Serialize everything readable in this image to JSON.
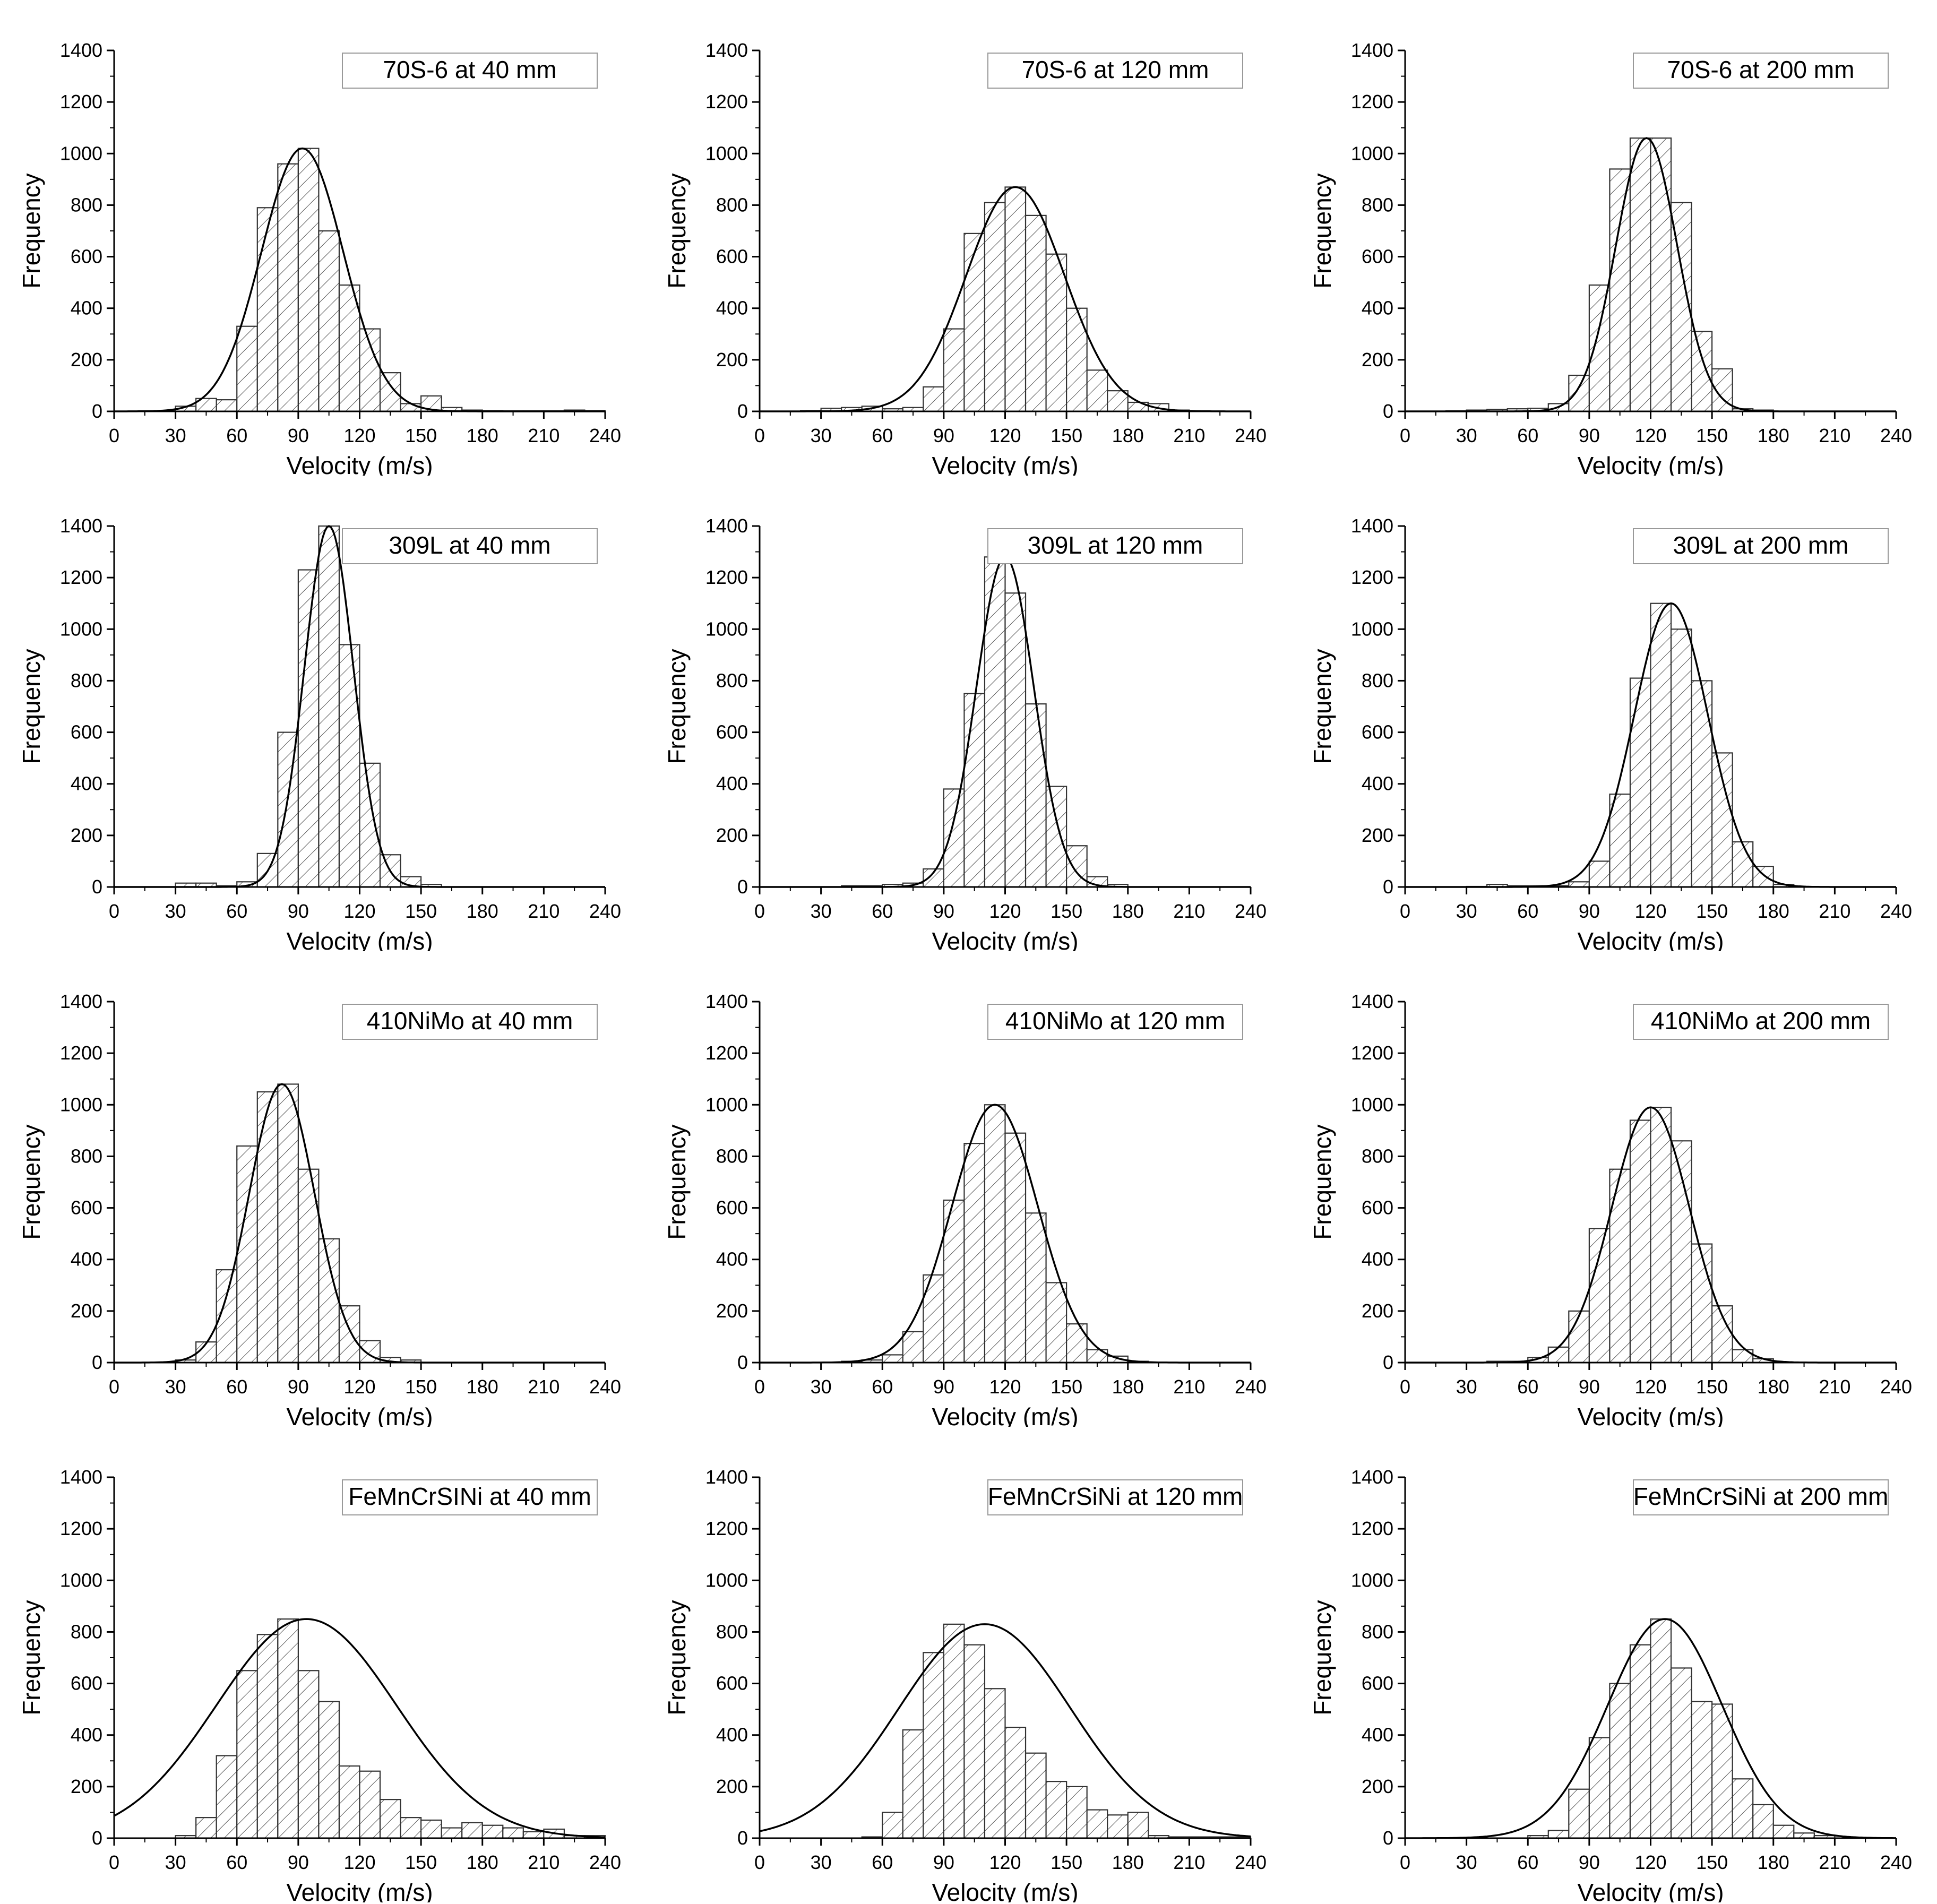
{
  "figure": {
    "axis_x_label": "Velocity (m/s)",
    "axis_y_label": "Frequency",
    "x_ticks": [
      "0",
      "30",
      "60",
      "90",
      "120",
      "150",
      "180",
      "210",
      "240"
    ],
    "y_ticks": [
      "0",
      "200",
      "400",
      "600",
      "800",
      "1000",
      "1200",
      "1400"
    ],
    "bar_fill_color": "#ffffff",
    "hatch_color": "#555555",
    "line_color": "#000000"
  },
  "chart_data": [
    {
      "type": "bar",
      "title": "70S-6 at 40 mm",
      "xlabel": "Velocity (m/s)",
      "ylabel": "Frequency",
      "xlim": [
        0,
        240
      ],
      "ylim": [
        0,
        1400
      ],
      "bin_width": 10,
      "bin_starts": [
        20,
        30,
        40,
        50,
        60,
        70,
        80,
        90,
        100,
        110,
        120,
        130,
        140,
        150,
        160,
        170,
        180,
        190,
        200,
        210,
        220,
        230
      ],
      "values": [
        3,
        20,
        50,
        45,
        330,
        790,
        960,
        1020,
        700,
        490,
        320,
        150,
        30,
        60,
        15,
        5,
        3,
        2,
        2,
        2,
        5,
        3
      ],
      "fit": {
        "mean": 92,
        "peak": 1020,
        "sd": 20
      }
    },
    {
      "type": "bar",
      "title": "70S-6 at 120 mm",
      "xlabel": "Velocity (m/s)",
      "ylabel": "Frequency",
      "xlim": [
        0,
        240
      ],
      "ylim": [
        0,
        1400
      ],
      "bin_width": 10,
      "bin_starts": [
        20,
        30,
        40,
        50,
        60,
        70,
        80,
        90,
        100,
        110,
        120,
        130,
        140,
        150,
        160,
        170,
        180,
        190,
        200
      ],
      "values": [
        3,
        12,
        15,
        20,
        10,
        15,
        95,
        320,
        690,
        810,
        870,
        760,
        610,
        400,
        160,
        80,
        35,
        30,
        5
      ],
      "fit": {
        "mean": 125,
        "peak": 870,
        "sd": 24
      }
    },
    {
      "type": "bar",
      "title": "70S-6 at 200 mm",
      "xlabel": "Velocity (m/s)",
      "ylabel": "Frequency",
      "xlim": [
        0,
        240
      ],
      "ylim": [
        0,
        1400
      ],
      "bin_width": 10,
      "bin_starts": [
        20,
        30,
        40,
        50,
        60,
        70,
        80,
        90,
        100,
        110,
        120,
        130,
        140,
        150,
        160,
        170
      ],
      "values": [
        2,
        5,
        8,
        10,
        12,
        30,
        140,
        490,
        940,
        1060,
        1060,
        810,
        310,
        165,
        10,
        5
      ],
      "fit": {
        "mean": 118,
        "peak": 1060,
        "sd": 15
      }
    },
    {
      "type": "bar",
      "title": "309L at 40 mm",
      "xlabel": "Velocity (m/s)",
      "ylabel": "Frequency",
      "xlim": [
        0,
        240
      ],
      "ylim": [
        0,
        1400
      ],
      "bin_width": 10,
      "bin_starts": [
        30,
        40,
        50,
        60,
        70,
        80,
        90,
        100,
        110,
        120,
        130,
        140,
        150
      ],
      "values": [
        15,
        15,
        5,
        20,
        130,
        600,
        1230,
        1400,
        940,
        480,
        125,
        40,
        10
      ],
      "fit": {
        "mean": 105,
        "peak": 1400,
        "sd": 12
      }
    },
    {
      "type": "bar",
      "title": "309L at 120 mm",
      "xlabel": "Velocity (m/s)",
      "ylabel": "Frequency",
      "xlim": [
        0,
        240
      ],
      "ylim": [
        0,
        1400
      ],
      "bin_width": 10,
      "bin_starts": [
        40,
        50,
        60,
        70,
        80,
        90,
        100,
        110,
        120,
        130,
        140,
        150,
        160,
        170
      ],
      "values": [
        5,
        5,
        10,
        15,
        70,
        380,
        750,
        1280,
        1140,
        710,
        390,
        160,
        40,
        10
      ],
      "fit": {
        "mean": 120,
        "peak": 1280,
        "sd": 14
      }
    },
    {
      "type": "bar",
      "title": "309L at 200 mm",
      "xlabel": "Velocity (m/s)",
      "ylabel": "Frequency",
      "xlim": [
        0,
        240
      ],
      "ylim": [
        0,
        1400
      ],
      "bin_width": 10,
      "bin_starts": [
        30,
        40,
        50,
        60,
        70,
        80,
        90,
        100,
        110,
        120,
        130,
        140,
        150,
        160,
        170,
        180
      ],
      "values": [
        2,
        10,
        5,
        5,
        5,
        20,
        100,
        360,
        810,
        1100,
        1000,
        800,
        520,
        175,
        80,
        10
      ],
      "fit": {
        "mean": 130,
        "peak": 1100,
        "sd": 18
      }
    },
    {
      "type": "bar",
      "title": "410NiMo at 40 mm",
      "xlabel": "Velocity (m/s)",
      "ylabel": "Frequency",
      "xlim": [
        0,
        240
      ],
      "ylim": [
        0,
        1400
      ],
      "bin_width": 10,
      "bin_starts": [
        20,
        30,
        40,
        50,
        60,
        70,
        80,
        90,
        100,
        110,
        120,
        130,
        140
      ],
      "values": [
        2,
        10,
        80,
        360,
        840,
        1050,
        1080,
        750,
        480,
        220,
        85,
        20,
        10
      ],
      "fit": {
        "mean": 82,
        "peak": 1080,
        "sd": 16
      }
    },
    {
      "type": "bar",
      "title": "410NiMo at 120 mm",
      "xlabel": "Velocity (m/s)",
      "ylabel": "Frequency",
      "xlim": [
        0,
        240
      ],
      "ylim": [
        0,
        1400
      ],
      "bin_width": 10,
      "bin_starts": [
        40,
        50,
        60,
        70,
        80,
        90,
        100,
        110,
        120,
        130,
        140,
        150,
        160,
        170,
        180
      ],
      "values": [
        5,
        10,
        30,
        120,
        340,
        630,
        850,
        1000,
        890,
        580,
        310,
        150,
        50,
        25,
        5
      ],
      "fit": {
        "mean": 115,
        "peak": 1000,
        "sd": 21
      }
    },
    {
      "type": "bar",
      "title": "410NiMo at 200 mm",
      "xlabel": "Velocity (m/s)",
      "ylabel": "Frequency",
      "xlim": [
        0,
        240
      ],
      "ylim": [
        0,
        1400
      ],
      "bin_width": 10,
      "bin_starts": [
        40,
        50,
        60,
        70,
        80,
        90,
        100,
        110,
        120,
        130,
        140,
        150,
        160,
        170
      ],
      "values": [
        5,
        5,
        20,
        60,
        200,
        520,
        750,
        940,
        990,
        860,
        460,
        220,
        50,
        15
      ],
      "fit": {
        "mean": 120,
        "peak": 990,
        "sd": 19
      }
    },
    {
      "type": "bar",
      "title": "FeMnCrSINi at 40 mm",
      "xlabel": "Velocity (m/s)",
      "ylabel": "Frequency",
      "xlim": [
        0,
        240
      ],
      "ylim": [
        0,
        1400
      ],
      "bin_width": 10,
      "bin_starts": [
        30,
        40,
        50,
        60,
        70,
        80,
        90,
        100,
        110,
        120,
        130,
        140,
        150,
        160,
        170,
        180,
        190,
        200,
        210,
        220,
        230
      ],
      "values": [
        10,
        80,
        320,
        650,
        790,
        850,
        650,
        530,
        280,
        260,
        150,
        80,
        70,
        40,
        60,
        50,
        40,
        25,
        35,
        10,
        10
      ],
      "fit": {
        "mean": 94,
        "peak": 850,
        "sd": 44
      }
    },
    {
      "type": "bar",
      "title": "FeMnCrSiNi at 120 mm",
      "xlabel": "Velocity (m/s)",
      "ylabel": "Frequency",
      "xlim": [
        0,
        240
      ],
      "ylim": [
        0,
        1400
      ],
      "bin_width": 10,
      "bin_starts": [
        50,
        60,
        70,
        80,
        90,
        100,
        110,
        120,
        130,
        140,
        150,
        160,
        170,
        180,
        190,
        200,
        210,
        220,
        230
      ],
      "values": [
        5,
        100,
        420,
        720,
        830,
        750,
        580,
        430,
        330,
        220,
        200,
        110,
        90,
        100,
        10,
        5,
        5,
        5,
        5
      ],
      "fit": {
        "mean": 110,
        "peak": 830,
        "sd": 42
      }
    },
    {
      "type": "bar",
      "title": "FeMnCrSiNi at 200 mm",
      "xlabel": "Velocity (m/s)",
      "ylabel": "Frequency",
      "xlim": [
        0,
        240
      ],
      "ylim": [
        0,
        1400
      ],
      "bin_width": 10,
      "bin_starts": [
        60,
        70,
        80,
        90,
        100,
        110,
        120,
        130,
        140,
        150,
        160,
        170,
        180,
        190,
        200
      ],
      "values": [
        10,
        30,
        190,
        390,
        600,
        750,
        850,
        660,
        530,
        520,
        230,
        130,
        50,
        20,
        10
      ],
      "fit": {
        "mean": 127,
        "peak": 850,
        "sd": 28
      }
    }
  ]
}
